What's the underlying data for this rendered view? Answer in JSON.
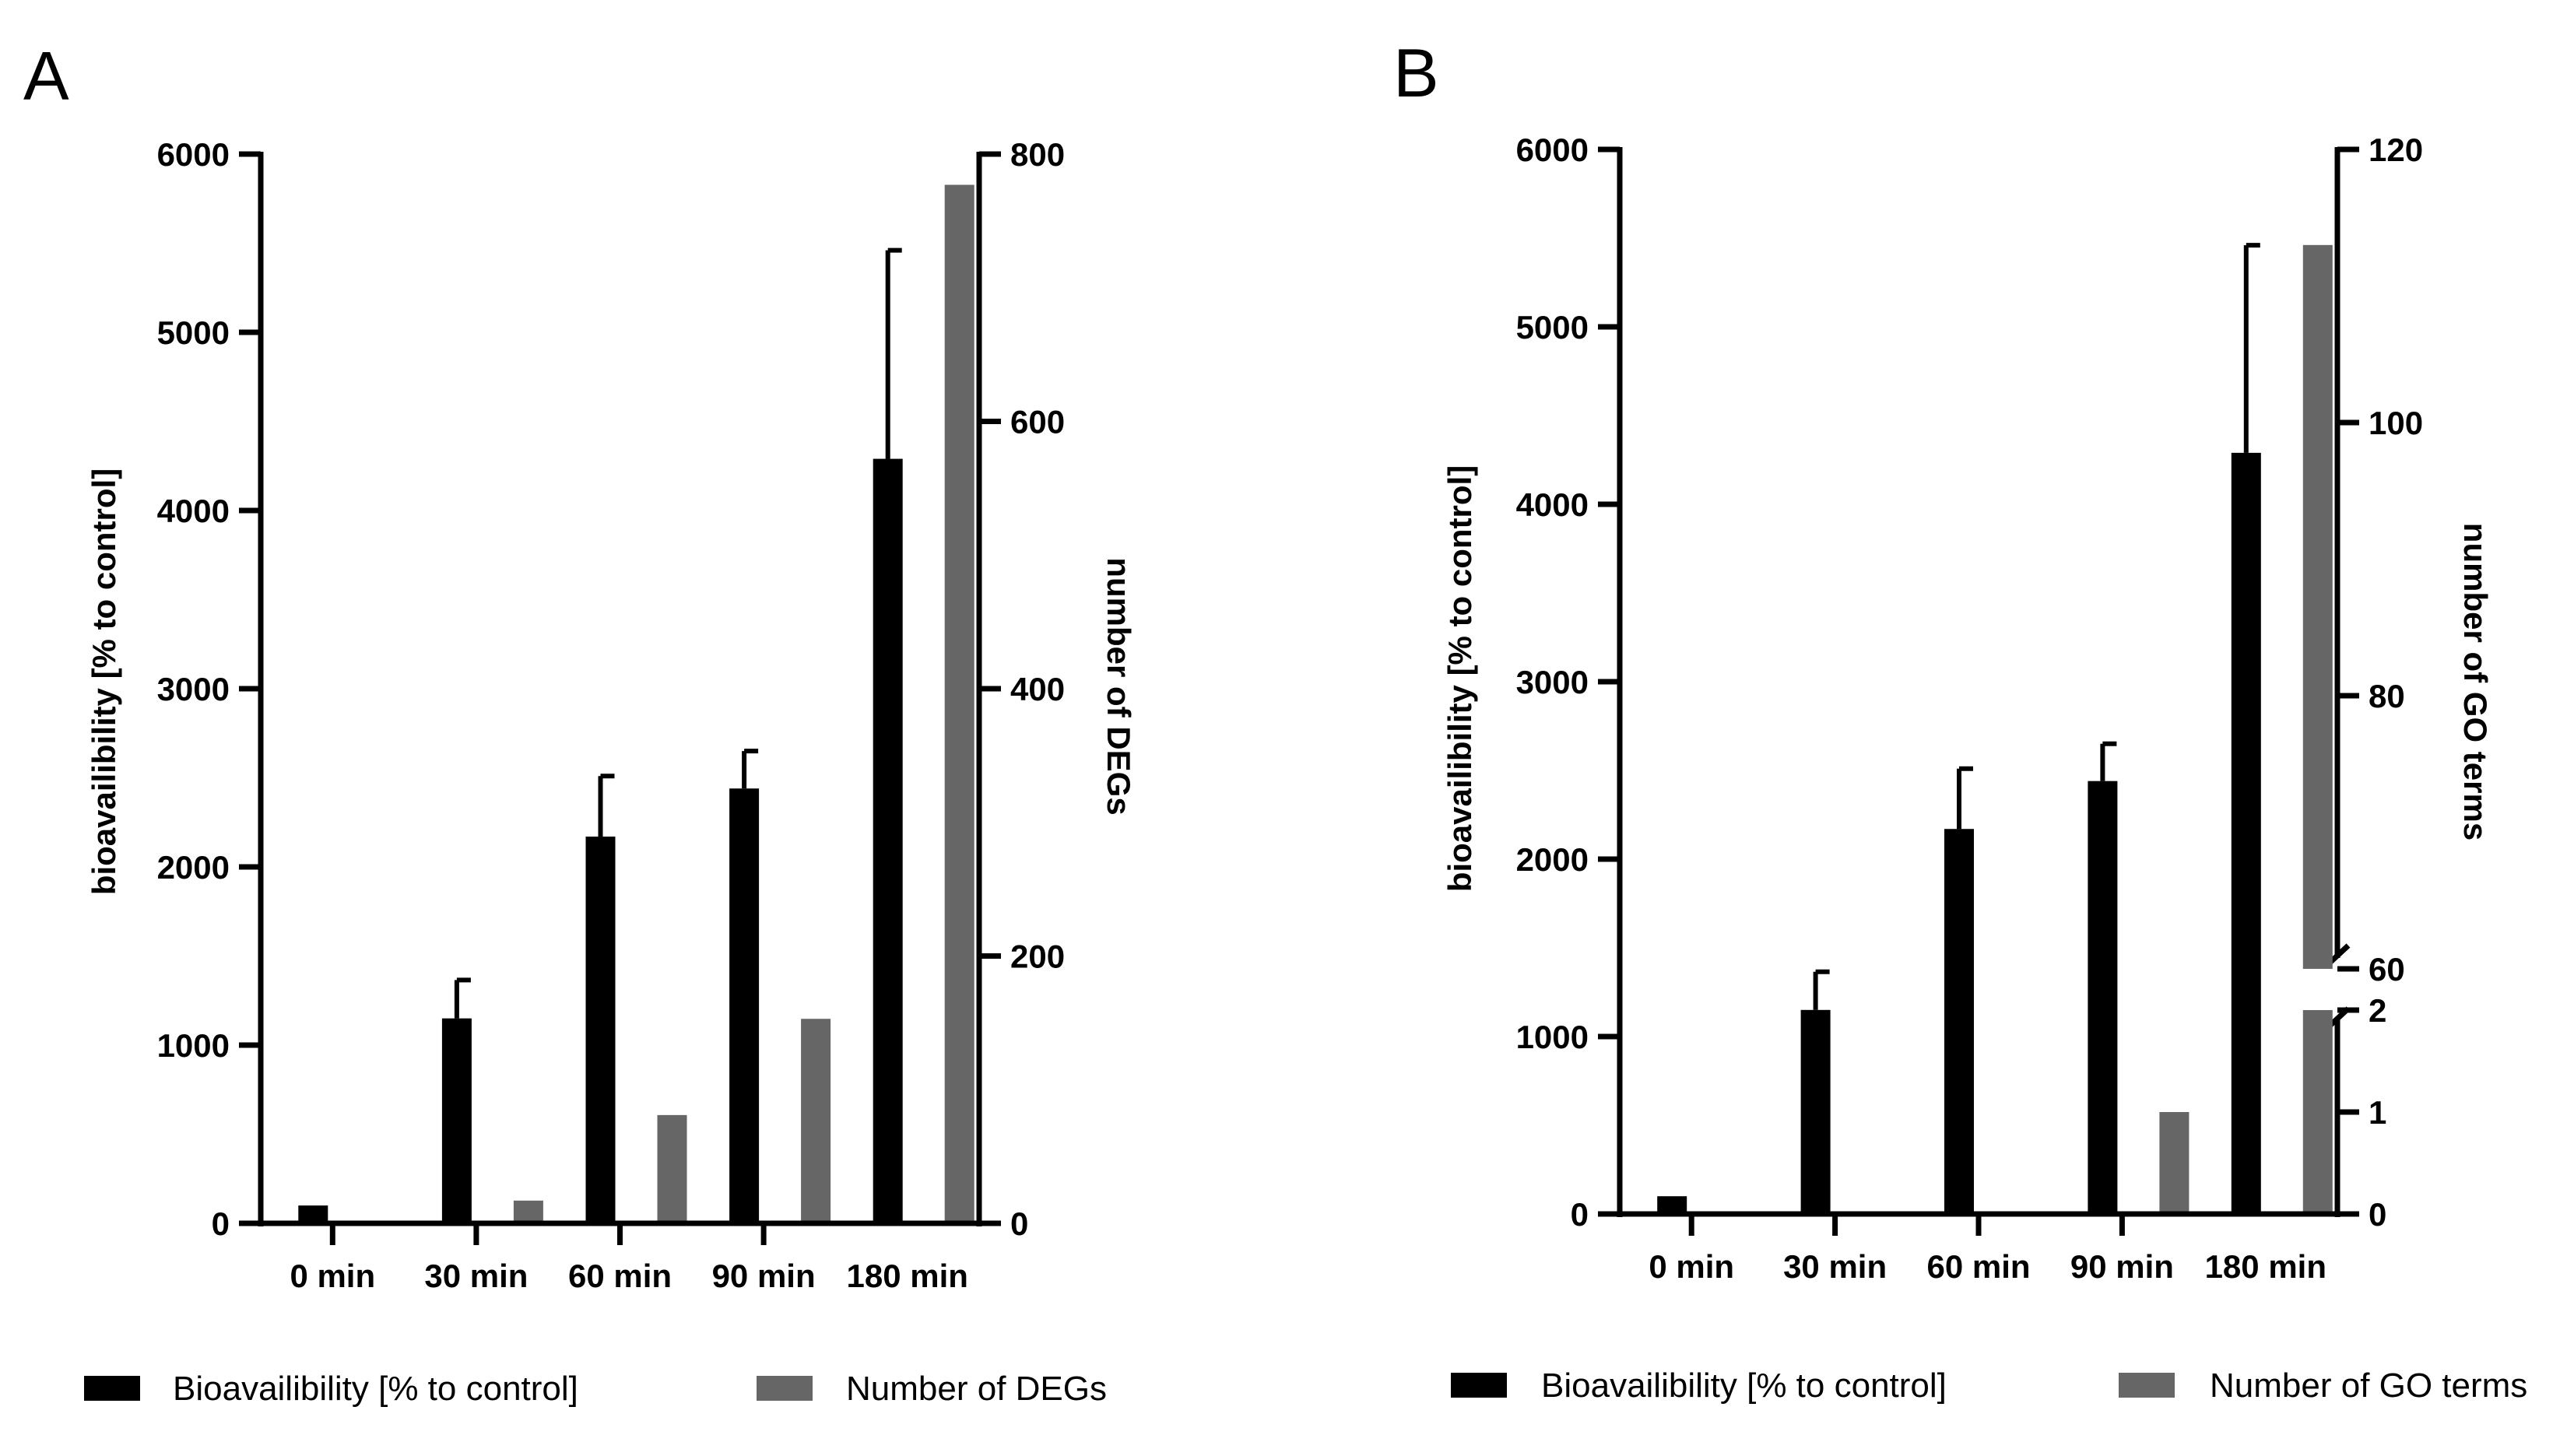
{
  "colors": {
    "bio": "#000000",
    "count": "#666666",
    "axis": "#000000"
  },
  "chart_data": [
    {
      "panel": "A",
      "type": "bar",
      "categories": [
        "0 min",
        "30 min",
        "60 min",
        "90 min",
        "180 min"
      ],
      "ylabel": "bioavailibility [% to control]",
      "y2label": "number of DEGs",
      "ylim": [
        0,
        6000
      ],
      "y2lim": [
        0,
        800
      ],
      "yticks": [
        "0",
        "1000",
        "2000",
        "3000",
        "4000",
        "5000",
        "6000"
      ],
      "y2ticks": [
        "0",
        "200",
        "400",
        "600",
        "800"
      ],
      "series": [
        {
          "name": "Bioavailibility [% to control]",
          "axis": "left",
          "values": [
            100,
            1150,
            2170,
            2440,
            4290
          ],
          "errors": [
            0,
            215,
            340,
            210,
            1170
          ]
        },
        {
          "name": "Number of DEGs",
          "axis": "right",
          "values": [
            0,
            17,
            81,
            153,
            777
          ]
        }
      ],
      "legend": [
        "Bioavailibility [% to control]",
        "Number of DEGs"
      ]
    },
    {
      "panel": "B",
      "type": "bar",
      "categories": [
        "0 min",
        "30 min",
        "60 min",
        "90 min",
        "180 min"
      ],
      "ylabel": "bioavailibility [% to control]",
      "y2label": "number of GO terms",
      "ylim": [
        0,
        6000
      ],
      "y2_segments": [
        [
          0,
          2
        ],
        [
          60,
          120
        ]
      ],
      "yticks": [
        "0",
        "1000",
        "2000",
        "3000",
        "4000",
        "5000",
        "6000"
      ],
      "y2ticks": [
        "0",
        "1",
        "2",
        "60",
        "80",
        "100",
        "120"
      ],
      "series": [
        {
          "name": "Bioavailibility [% to control]",
          "axis": "left",
          "values": [
            100,
            1150,
            2170,
            2440,
            4290
          ],
          "errors": [
            0,
            215,
            340,
            210,
            1170
          ]
        },
        {
          "name": "Number of GO terms",
          "axis": "right",
          "values": [
            0,
            0,
            0,
            1,
            113
          ]
        }
      ],
      "legend": [
        "Bioavailibility [% to control]",
        "Number of GO terms"
      ]
    }
  ]
}
